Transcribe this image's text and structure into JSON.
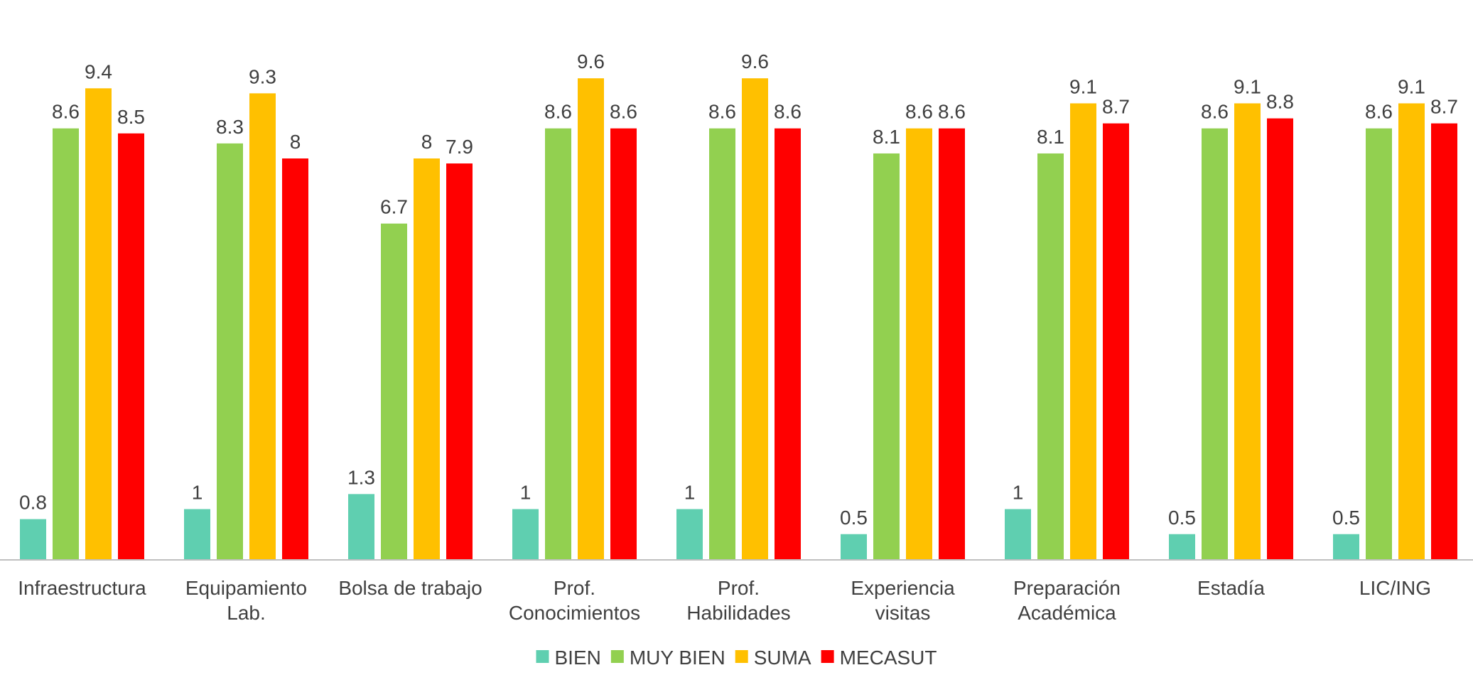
{
  "chart_data": {
    "type": "bar",
    "categories": [
      [
        "Infraestructura"
      ],
      [
        "Equipamiento",
        "Lab."
      ],
      [
        "Bolsa de trabajo"
      ],
      [
        "Prof.",
        "Conocimientos"
      ],
      [
        "Prof.",
        "Habilidades"
      ],
      [
        "Experiencia",
        "visitas"
      ],
      [
        "Preparación",
        "Académica"
      ],
      [
        "Estadía"
      ],
      [
        "LIC/ING"
      ]
    ],
    "series": [
      {
        "name": "BIEN",
        "color": "#5fcfb0",
        "values": [
          0.8,
          1,
          1.3,
          1,
          1,
          0.5,
          1,
          0.5,
          0.5
        ]
      },
      {
        "name": "MUY BIEN",
        "color": "#92d050",
        "values": [
          8.6,
          8.3,
          6.7,
          8.6,
          8.6,
          8.1,
          8.1,
          8.6,
          8.6
        ]
      },
      {
        "name": "SUMA",
        "color": "#ffc000",
        "values": [
          9.4,
          9.3,
          8,
          9.6,
          9.6,
          8.6,
          9.1,
          9.1,
          9.1
        ]
      },
      {
        "name": "MECASUT",
        "color": "#ff0000",
        "values": [
          8.5,
          8,
          7.9,
          8.6,
          8.6,
          8.6,
          8.7,
          8.8,
          8.7
        ]
      }
    ],
    "ylim": [
      0,
      10
    ],
    "grid": false,
    "legend_position": "bottom",
    "axis_color": "#bfbfbf"
  }
}
